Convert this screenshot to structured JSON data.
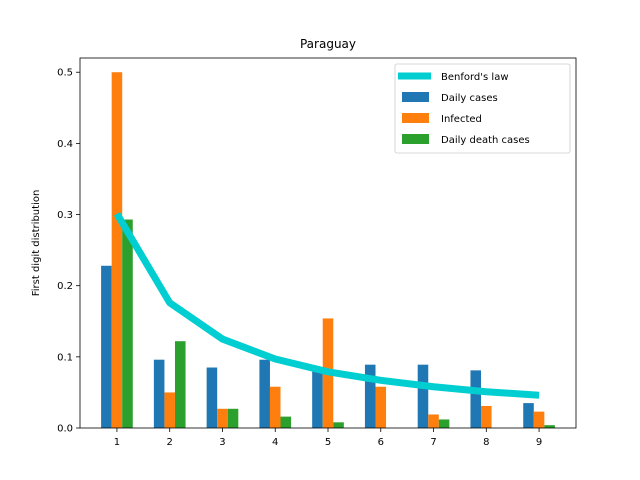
{
  "chart_data": {
    "type": "bar",
    "title": "Paraguay",
    "xlabel": "",
    "ylabel": "First digit distribution",
    "categories": [
      "1",
      "2",
      "3",
      "4",
      "5",
      "6",
      "7",
      "8",
      "9"
    ],
    "ylim": [
      0,
      0.52
    ],
    "yticks": [
      "0.0",
      "0.1",
      "0.2",
      "0.3",
      "0.4",
      "0.5"
    ],
    "legend_position": "top-right",
    "grid": false,
    "series": [
      {
        "name": "Daily cases",
        "kind": "bar",
        "color": "#1f77b4",
        "values": [
          0.228,
          0.096,
          0.085,
          0.096,
          0.085,
          0.089,
          0.089,
          0.081,
          0.035
        ]
      },
      {
        "name": "Infected",
        "kind": "bar",
        "color": "#ff7f0e",
        "values": [
          0.5,
          0.05,
          0.027,
          0.058,
          0.154,
          0.058,
          0.019,
          0.031,
          0.023
        ]
      },
      {
        "name": "Daily death cases",
        "kind": "bar",
        "color": "#2ca02c",
        "values": [
          0.293,
          0.122,
          0.027,
          0.016,
          0.008,
          0.0,
          0.012,
          0.0,
          0.004
        ]
      }
    ],
    "line": {
      "name": "Benford's law",
      "kind": "line",
      "color": "#00ced1",
      "values": [
        0.301,
        0.176,
        0.125,
        0.097,
        0.079,
        0.067,
        0.058,
        0.051,
        0.046
      ]
    }
  }
}
